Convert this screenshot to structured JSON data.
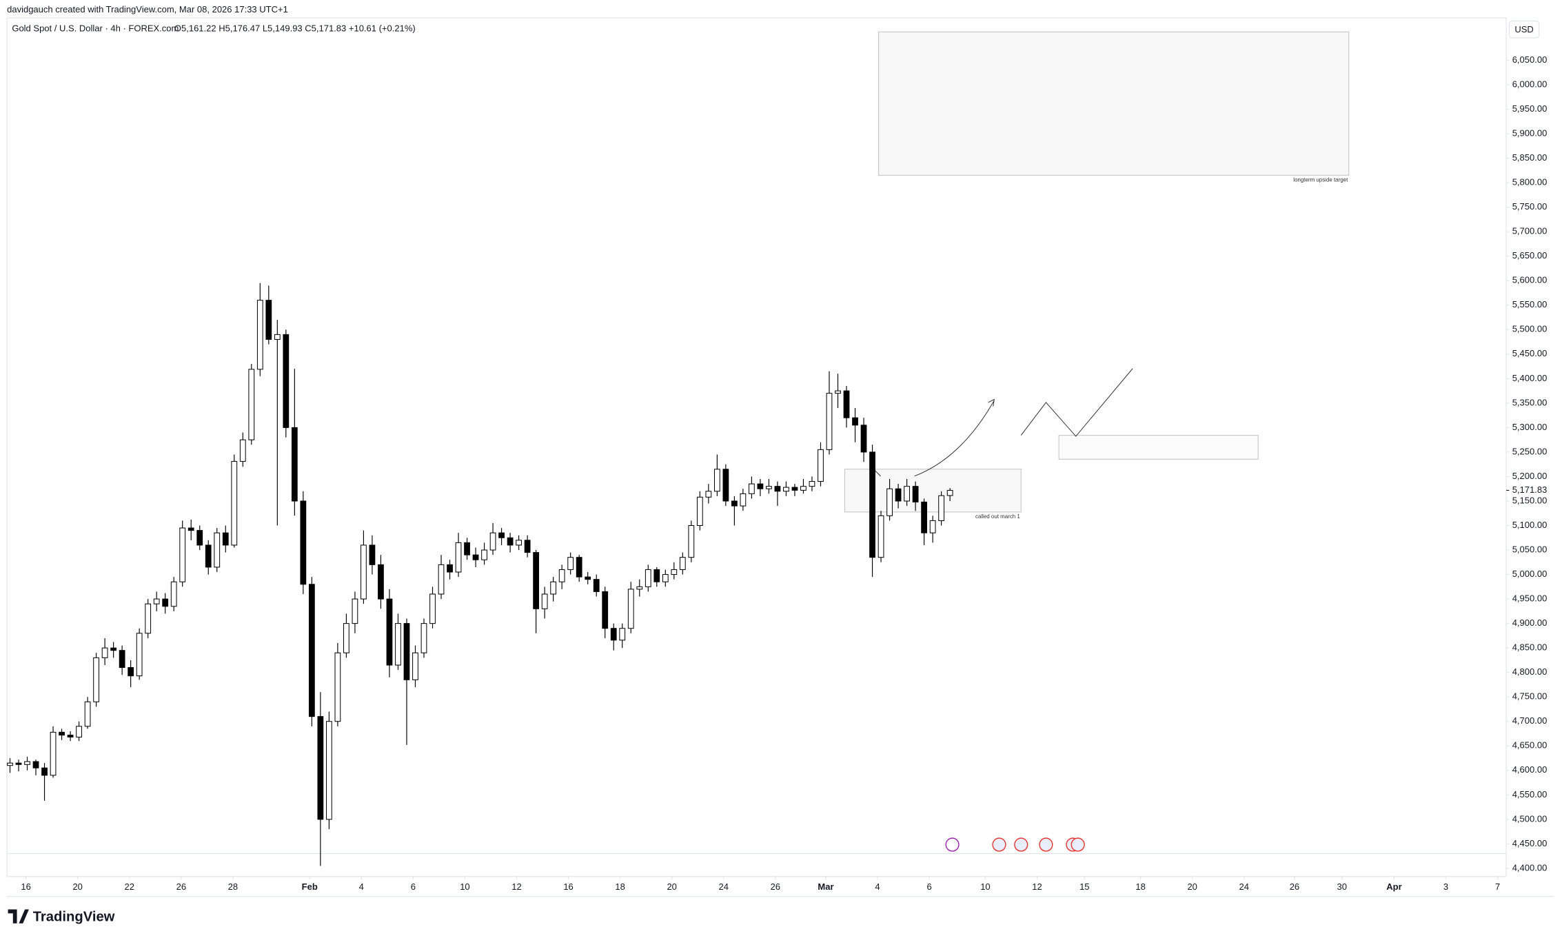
{
  "chart_data": {
    "type": "candlestick",
    "author_line": "davidgauch created with TradingView.com, Mar 08, 2026 17:33 UTC+1",
    "title": "Gold Spot / U.S. Dollar · 4h · FOREX.com",
    "ohlc_legend": "O5,161.22  H5,176.47  L5,149.93  C5,171.83  +10.61 (+0.21%)",
    "currency": "USD",
    "brand": "TradingView",
    "annotations": [
      "longterm upside target",
      "called out march 1"
    ],
    "last_price": {
      "value": 5171.83,
      "label": "5,171.83"
    },
    "up_color": "#ffffff",
    "down_color": "#000000",
    "border_color": "#000000",
    "ohlc": [
      [
        4610,
        4625,
        4595,
        4615
      ],
      [
        4615,
        4622,
        4598,
        4612
      ],
      [
        4612,
        4628,
        4600,
        4618
      ],
      [
        4618,
        4622,
        4590,
        4605
      ],
      [
        4605,
        4615,
        4538,
        4590
      ],
      [
        4590,
        4690,
        4585,
        4678
      ],
      [
        4678,
        4685,
        4662,
        4672
      ],
      [
        4672,
        4680,
        4660,
        4668
      ],
      [
        4668,
        4700,
        4660,
        4690
      ],
      [
        4690,
        4750,
        4685,
        4740
      ],
      [
        4740,
        4840,
        4730,
        4830
      ],
      [
        4830,
        4870,
        4815,
        4850
      ],
      [
        4850,
        4862,
        4830,
        4845
      ],
      [
        4845,
        4855,
        4795,
        4810
      ],
      [
        4810,
        4825,
        4770,
        4793
      ],
      [
        4793,
        4890,
        4785,
        4880
      ],
      [
        4880,
        4950,
        4870,
        4940
      ],
      [
        4940,
        4965,
        4925,
        4950
      ],
      [
        4950,
        4962,
        4920,
        4935
      ],
      [
        4935,
        4995,
        4925,
        4985
      ],
      [
        4985,
        5110,
        4975,
        5095
      ],
      [
        5095,
        5112,
        5070,
        5090
      ],
      [
        5090,
        5100,
        5050,
        5060
      ],
      [
        5060,
        5070,
        5000,
        5015
      ],
      [
        5015,
        5095,
        5005,
        5085
      ],
      [
        5085,
        5100,
        5045,
        5060
      ],
      [
        5060,
        5245,
        5055,
        5231
      ],
      [
        5231,
        5290,
        5220,
        5275
      ],
      [
        5275,
        5430,
        5265,
        5419
      ],
      [
        5419,
        5595,
        5405,
        5560
      ],
      [
        5560,
        5590,
        5470,
        5480
      ],
      [
        5480,
        5520,
        5100,
        5490
      ],
      [
        5490,
        5500,
        5280,
        5300
      ],
      [
        5300,
        5420,
        5120,
        5150
      ],
      [
        5150,
        5170,
        4960,
        4980
      ],
      [
        4980,
        4995,
        4690,
        4710
      ],
      [
        4710,
        4760,
        4405,
        4500
      ],
      [
        4500,
        4720,
        4480,
        4700
      ],
      [
        4700,
        4860,
        4690,
        4840
      ],
      [
        4840,
        4920,
        4830,
        4900
      ],
      [
        4900,
        4965,
        4880,
        4950
      ],
      [
        4950,
        5090,
        4940,
        5060
      ],
      [
        5060,
        5080,
        5000,
        5020
      ],
      [
        5020,
        5040,
        4930,
        4950
      ],
      [
        4950,
        4970,
        4790,
        4815
      ],
      [
        4815,
        4920,
        4805,
        4900
      ],
      [
        4900,
        4910,
        4652,
        4785
      ],
      [
        4785,
        4855,
        4770,
        4840
      ],
      [
        4840,
        4910,
        4830,
        4900
      ],
      [
        4900,
        4975,
        4890,
        4960
      ],
      [
        4960,
        5040,
        4950,
        5020
      ],
      [
        5020,
        5030,
        4990,
        5005
      ],
      [
        5005,
        5085,
        4995,
        5065
      ],
      [
        5065,
        5075,
        5030,
        5040
      ],
      [
        5040,
        5055,
        5015,
        5030
      ],
      [
        5030,
        5065,
        5020,
        5050
      ],
      [
        5050,
        5105,
        5040,
        5085
      ],
      [
        5085,
        5095,
        5060,
        5075
      ],
      [
        5075,
        5085,
        5045,
        5060
      ],
      [
        5060,
        5080,
        5050,
        5070
      ],
      [
        5070,
        5080,
        5035,
        5045
      ],
      [
        5045,
        5050,
        4880,
        4930
      ],
      [
        4930,
        4975,
        4910,
        4960
      ],
      [
        4960,
        4995,
        4945,
        4985
      ],
      [
        4985,
        5020,
        4970,
        5010
      ],
      [
        5010,
        5045,
        5000,
        5035
      ],
      [
        5035,
        5040,
        4985,
        4995
      ],
      [
        4995,
        5005,
        4980,
        4990
      ],
      [
        4990,
        5000,
        4955,
        4965
      ],
      [
        4965,
        4975,
        4870,
        4890
      ],
      [
        4890,
        4900,
        4845,
        4866
      ],
      [
        4866,
        4900,
        4850,
        4890
      ],
      [
        4890,
        4985,
        4880,
        4970
      ],
      [
        4970,
        4990,
        4955,
        4975
      ],
      [
        4975,
        5020,
        4965,
        5010
      ],
      [
        5010,
        5015,
        4975,
        4985
      ],
      [
        4985,
        5010,
        4975,
        5000
      ],
      [
        5000,
        5025,
        4990,
        5010
      ],
      [
        5010,
        5045,
        5000,
        5035
      ],
      [
        5035,
        5110,
        5025,
        5100
      ],
      [
        5100,
        5170,
        5090,
        5158
      ],
      [
        5158,
        5185,
        5145,
        5170
      ],
      [
        5170,
        5245,
        5160,
        5215
      ],
      [
        5215,
        5225,
        5140,
        5150
      ],
      [
        5150,
        5160,
        5100,
        5140
      ],
      [
        5140,
        5175,
        5130,
        5165
      ],
      [
        5165,
        5200,
        5155,
        5185
      ],
      [
        5185,
        5195,
        5160,
        5175
      ],
      [
        5175,
        5195,
        5165,
        5180
      ],
      [
        5180,
        5190,
        5140,
        5170
      ],
      [
        5170,
        5190,
        5160,
        5178
      ],
      [
        5178,
        5185,
        5160,
        5172
      ],
      [
        5172,
        5195,
        5165,
        5180
      ],
      [
        5180,
        5200,
        5170,
        5190
      ],
      [
        5190,
        5270,
        5180,
        5255
      ],
      [
        5255,
        5415,
        5245,
        5370
      ],
      [
        5370,
        5410,
        5340,
        5375
      ],
      [
        5375,
        5385,
        5300,
        5320
      ],
      [
        5320,
        5340,
        5270,
        5305
      ],
      [
        5305,
        5320,
        5230,
        5250
      ],
      [
        5250,
        5265,
        4995,
        5035
      ],
      [
        5035,
        5130,
        5025,
        5120
      ],
      [
        5120,
        5195,
        5110,
        5175
      ],
      [
        5175,
        5185,
        5135,
        5150
      ],
      [
        5150,
        5195,
        5140,
        5180
      ],
      [
        5180,
        5190,
        5130,
        5148
      ],
      [
        5148,
        5155,
        5060,
        5085
      ],
      [
        5085,
        5120,
        5065,
        5110
      ],
      [
        5110,
        5170,
        5100,
        5161
      ],
      [
        5161.22,
        5176.47,
        5149.93,
        5171.83
      ]
    ],
    "xlim": [
      -0.35,
      173.5
    ],
    "xticks": [
      {
        "value": 1.85,
        "label": "16"
      },
      {
        "value": 7.85,
        "label": "20"
      },
      {
        "value": 13.85,
        "label": "22"
      },
      {
        "value": 19.85,
        "label": "26"
      },
      {
        "value": 25.85,
        "label": "28"
      },
      {
        "value": 34.75,
        "label": "Feb"
      },
      {
        "value": 40.75,
        "label": "4"
      },
      {
        "value": 46.75,
        "label": "6"
      },
      {
        "value": 52.75,
        "label": "10"
      },
      {
        "value": 58.75,
        "label": "12"
      },
      {
        "value": 64.75,
        "label": "16"
      },
      {
        "value": 70.75,
        "label": "18"
      },
      {
        "value": 76.75,
        "label": "20"
      },
      {
        "value": 82.75,
        "label": "24"
      },
      {
        "value": 88.75,
        "label": "26"
      },
      {
        "value": 94.6,
        "label": "Mar"
      },
      {
        "value": 100.6,
        "label": "4"
      },
      {
        "value": 106.6,
        "label": "6"
      },
      {
        "value": 113.1,
        "label": "10"
      },
      {
        "value": 119.1,
        "label": "12"
      },
      {
        "value": 124.6,
        "label": "15"
      },
      {
        "value": 131.1,
        "label": "18"
      },
      {
        "value": 137.1,
        "label": "20"
      },
      {
        "value": 143.1,
        "label": "24"
      },
      {
        "value": 148.95,
        "label": "26"
      },
      {
        "value": 154.45,
        "label": "30"
      },
      {
        "value": 160.5,
        "label": "Apr"
      },
      {
        "value": 166.5,
        "label": "3"
      },
      {
        "value": 172.5,
        "label": "7"
      }
    ],
    "ylim": [
      4383.3,
      6136.4
    ],
    "yticks": [
      {
        "value": 4400,
        "label": "4,400.00"
      },
      {
        "value": 4450,
        "label": "4,450.00"
      },
      {
        "value": 4500,
        "label": "4,500.00"
      },
      {
        "value": 4550,
        "label": "4,550.00"
      },
      {
        "value": 4600,
        "label": "4,600.00"
      },
      {
        "value": 4650,
        "label": "4,650.00"
      },
      {
        "value": 4700,
        "label": "4,700.00"
      },
      {
        "value": 4750,
        "label": "4,750.00"
      },
      {
        "value": 4800,
        "label": "4,800.00"
      },
      {
        "value": 4850,
        "label": "4,850.00"
      },
      {
        "value": 4900,
        "label": "4,900.00"
      },
      {
        "value": 4950,
        "label": "4,950.00"
      },
      {
        "value": 5000,
        "label": "5,000.00"
      },
      {
        "value": 5050,
        "label": "5,050.00"
      },
      {
        "value": 5100,
        "label": "5,100.00"
      },
      {
        "value": 5150,
        "label": "5,150.00"
      },
      {
        "value": 5200,
        "label": "5,200.00"
      },
      {
        "value": 5250,
        "label": "5,250.00"
      },
      {
        "value": 5300,
        "label": "5,300.00"
      },
      {
        "value": 5350,
        "label": "5,350.00"
      },
      {
        "value": 5400,
        "label": "5,400.00"
      },
      {
        "value": 5450,
        "label": "5,450.00"
      },
      {
        "value": 5500,
        "label": "5,500.00"
      },
      {
        "value": 5550,
        "label": "5,550.00"
      },
      {
        "value": 5600,
        "label": "5,600.00"
      },
      {
        "value": 5650,
        "label": "5,650.00"
      },
      {
        "value": 5700,
        "label": "5,700.00"
      },
      {
        "value": 5750,
        "label": "5,750.00"
      },
      {
        "value": 5800,
        "label": "5,800.00"
      },
      {
        "value": 5850,
        "label": "5,850.00"
      },
      {
        "value": 5900,
        "label": "5,900.00"
      },
      {
        "value": 5950,
        "label": "5,950.00"
      },
      {
        "value": 6000,
        "label": "6,000.00"
      },
      {
        "value": 6050,
        "label": "6,050.00"
      }
    ],
    "grid": false
  }
}
